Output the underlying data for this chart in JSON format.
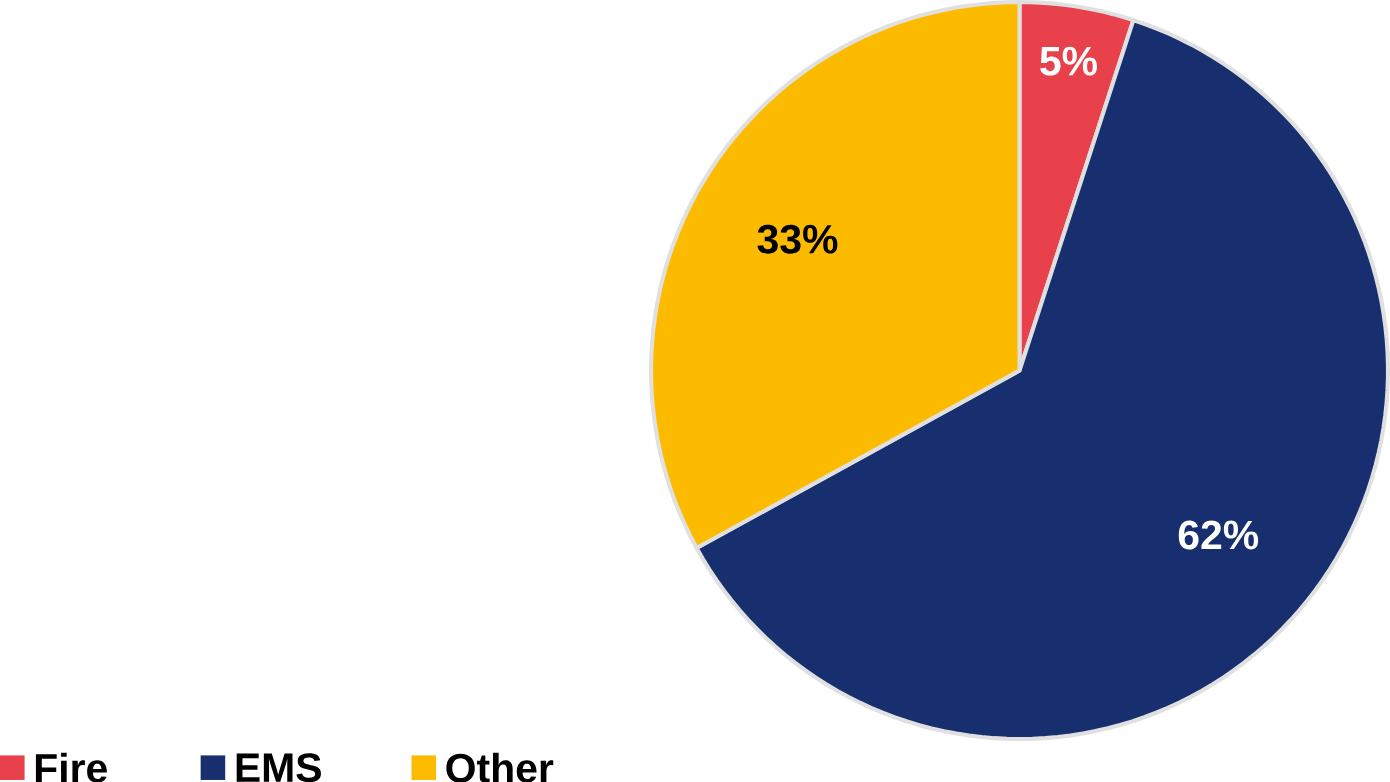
{
  "chart_data": {
    "type": "pie",
    "categories": [
      "Fire",
      "EMS",
      "Other"
    ],
    "values": [
      5,
      62,
      33
    ],
    "colors": [
      "#e8414b",
      "#172f6e",
      "#fdbb00"
    ],
    "value_labels": [
      "5%",
      "62%",
      "33%"
    ],
    "legend": "bottom left"
  }
}
